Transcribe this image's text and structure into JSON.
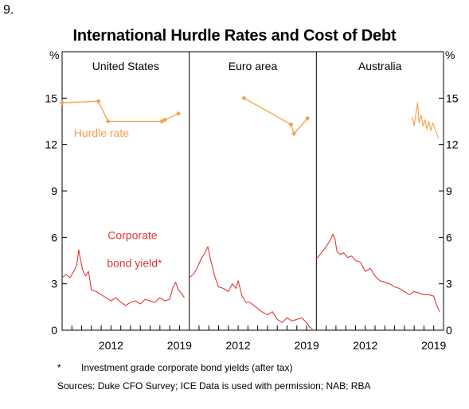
{
  "figure_number": "9.",
  "footnote": {
    "marker": "*",
    "text": "Investment grade corporate bond yields (after tax)"
  },
  "sources": "Sources: Duke CFO Survey; ICE Data is used with permission; NAB; RBA",
  "chart_data": {
    "type": "line",
    "title": "International Hurdle Rates and Cost of Debt",
    "yunit_left": "%",
    "yunit_right": "%",
    "ylim": [
      0,
      18
    ],
    "yticks": [
      0,
      3,
      6,
      9,
      12,
      15
    ],
    "xlim": [
      2007,
      2020
    ],
    "xticks": [
      2012,
      2019
    ],
    "grid": false,
    "colors": {
      "hurdle": "#f5a04a",
      "bond": "#e0383a"
    },
    "panels": [
      {
        "title": "United States",
        "annotations": [
          {
            "text": "Hurdle rate",
            "series": "hurdle"
          },
          {
            "text": "Corporate",
            "series": "bond"
          },
          {
            "text": "bond yield*",
            "series": "bond"
          }
        ],
        "series": [
          {
            "key": "hurdle",
            "style": "markers",
            "x": [
              2007.0,
              2010.7,
              2011.7,
              2017.2,
              2017.5,
              2018.9
            ],
            "y": [
              14.7,
              14.8,
              13.5,
              13.5,
              13.6,
              14.0
            ]
          },
          {
            "key": "bond",
            "style": "line",
            "x": [
              2007.0,
              2007.4,
              2007.8,
              2008.2,
              2008.5,
              2008.7,
              2008.9,
              2009.1,
              2009.4,
              2009.7,
              2010.0,
              2010.5,
              2011.0,
              2011.5,
              2012.0,
              2012.5,
              2013.0,
              2013.5,
              2014.0,
              2014.5,
              2015.0,
              2015.5,
              2016.0,
              2016.5,
              2017.0,
              2017.5,
              2018.0,
              2018.3,
              2018.6,
              2018.9,
              2019.2,
              2019.5
            ],
            "y": [
              3.4,
              3.6,
              3.4,
              3.8,
              4.2,
              5.2,
              4.5,
              3.9,
              3.5,
              3.8,
              2.6,
              2.5,
              2.3,
              2.1,
              1.9,
              2.1,
              1.8,
              1.6,
              1.8,
              1.9,
              1.7,
              2.0,
              1.9,
              1.8,
              2.1,
              1.9,
              2.0,
              2.7,
              3.1,
              2.6,
              2.4,
              2.1
            ]
          }
        ]
      },
      {
        "title": "Euro area",
        "annotations": [],
        "series": [
          {
            "key": "hurdle",
            "style": "markers",
            "x": [
              2012.6,
              2017.4,
              2017.7,
              2019.1
            ],
            "y": [
              15.0,
              13.3,
              12.7,
              13.7
            ]
          },
          {
            "key": "bond",
            "style": "line",
            "x": [
              2007.0,
              2007.4,
              2007.8,
              2008.2,
              2008.6,
              2008.9,
              2009.2,
              2009.6,
              2010.0,
              2010.5,
              2011.0,
              2011.4,
              2011.8,
              2012.0,
              2012.4,
              2012.8,
              2013.2,
              2013.8,
              2014.4,
              2015.0,
              2015.5,
              2016.0,
              2016.5,
              2017.0,
              2017.5,
              2018.0,
              2018.5,
              2019.0,
              2019.3,
              2019.6
            ],
            "y": [
              3.4,
              3.6,
              4.0,
              4.6,
              5.0,
              5.4,
              4.5,
              3.5,
              2.8,
              2.7,
              2.5,
              3.0,
              2.7,
              3.2,
              2.2,
              1.8,
              1.8,
              1.5,
              1.2,
              1.0,
              1.2,
              0.7,
              0.5,
              0.8,
              0.6,
              0.7,
              0.8,
              0.5,
              0.2,
              0.1
            ]
          }
        ]
      },
      {
        "title": "Australia",
        "annotations": [],
        "series": [
          {
            "key": "hurdle",
            "style": "line",
            "x": [
              2016.8,
              2017.0,
              2017.2,
              2017.35,
              2017.5,
              2017.7,
              2017.9,
              2018.1,
              2018.3,
              2018.5,
              2018.7,
              2018.9,
              2019.1,
              2019.3,
              2019.5
            ],
            "y": [
              13.8,
              13.2,
              14.1,
              14.7,
              13.4,
              13.9,
              13.2,
              13.6,
              13.0,
              13.5,
              12.9,
              13.4,
              13.1,
              12.7,
              12.4
            ]
          },
          {
            "key": "bond",
            "style": "line",
            "x": [
              2007.0,
              2007.5,
              2008.0,
              2008.4,
              2008.7,
              2008.9,
              2009.1,
              2009.4,
              2009.8,
              2010.2,
              2010.6,
              2011.0,
              2011.5,
              2012.0,
              2012.5,
              2013.0,
              2013.5,
              2014.0,
              2014.5,
              2015.0,
              2015.5,
              2016.0,
              2016.5,
              2017.0,
              2017.5,
              2018.0,
              2018.5,
              2019.0,
              2019.3,
              2019.6
            ],
            "y": [
              4.6,
              5.0,
              5.4,
              5.8,
              6.2,
              5.9,
              5.1,
              4.9,
              5.0,
              4.7,
              4.8,
              4.5,
              4.4,
              3.8,
              4.0,
              3.5,
              3.2,
              3.1,
              3.0,
              2.8,
              2.7,
              2.5,
              2.3,
              2.5,
              2.4,
              2.3,
              2.3,
              2.2,
              1.6,
              1.2
            ]
          }
        ]
      }
    ]
  }
}
